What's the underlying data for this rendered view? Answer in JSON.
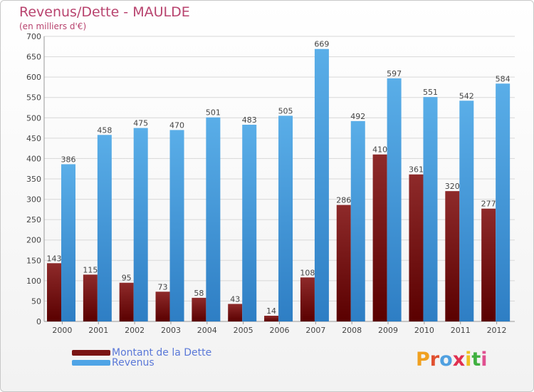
{
  "title": "Revenus/Dette - MAULDE",
  "subtitle": "(en milliers d'€)",
  "logo": {
    "text": "Proxiti",
    "colors": [
      "#f0a020",
      "#e05030",
      "#50a0e0",
      "#e03050",
      "#f0c020",
      "#40b040",
      "#e05090"
    ]
  },
  "colors": {
    "dette": "#7a1414",
    "revenus": "#4fa4e6",
    "title": "#b8436e",
    "legend_text": "#5a78d8",
    "axis_text": "#444444",
    "grid": "#d8d8d8"
  },
  "chart_data": {
    "type": "bar",
    "categories": [
      "2000",
      "2001",
      "2002",
      "2003",
      "2004",
      "2005",
      "2006",
      "2007",
      "2008",
      "2009",
      "2010",
      "2011",
      "2012"
    ],
    "series": [
      {
        "name": "Montant de la Dette",
        "values": [
          143,
          115,
          95,
          73,
          58,
          43,
          14,
          108,
          286,
          410,
          361,
          320,
          277
        ]
      },
      {
        "name": "Revenus",
        "values": [
          386,
          458,
          475,
          470,
          501,
          483,
          505,
          669,
          492,
          597,
          551,
          542,
          584
        ]
      }
    ],
    "ylim": [
      0,
      700
    ],
    "yticks": [
      0,
      50,
      100,
      150,
      200,
      250,
      300,
      350,
      400,
      450,
      500,
      550,
      600,
      650,
      700
    ],
    "grid": true,
    "legend": "bottom-left"
  }
}
